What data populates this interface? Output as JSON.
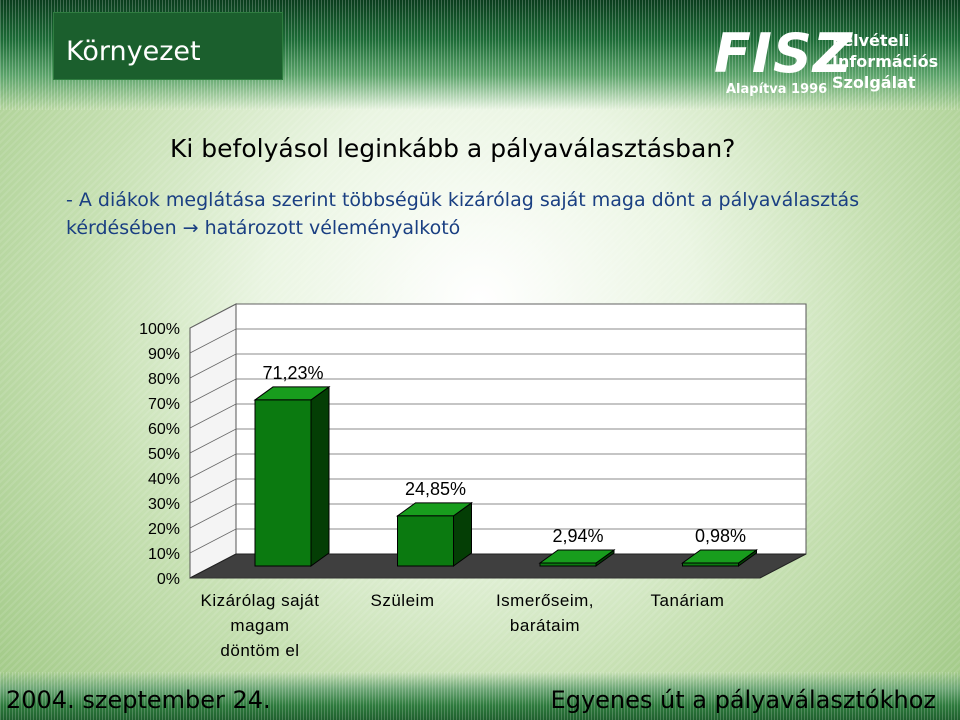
{
  "header": {
    "section_title": "Környezet",
    "logo": {
      "wordmark": "FISZ",
      "founded": "Alapítva 1996",
      "name_lines": [
        "Felvételi",
        "Információs",
        "Szolgálat"
      ]
    }
  },
  "headline": "Ki befolyásol leginkább a pályaválasztásban?",
  "subline": {
    "text": "- A diákok meglátása szerint többségük kizárólag saját maga dönt a pályaválasztás kérdésében",
    "arrow": "→",
    "conclusion": "határozott véleményalkotó"
  },
  "footer": {
    "date": "2004. szeptember 24.",
    "tagline": "Egyenes út a pályaválasztókhoz"
  },
  "colors": {
    "bar_front": "#0b7a10",
    "bar_side": "#043e05",
    "bar_top": "#189d1d",
    "floor": "#3f3f3f",
    "wall": "#ffffff"
  },
  "chart_data": {
    "type": "bar",
    "categories": [
      [
        "Kizárólag saját",
        "magam",
        "döntöm el"
      ],
      [
        "Szüleim"
      ],
      [
        "Ismerőseim,",
        "barátaim"
      ],
      [
        "Tanáriam"
      ]
    ],
    "values": [
      71.23,
      24.85,
      2.94,
      0.98
    ],
    "data_labels": [
      "71,23%",
      "24,85%",
      "2,94%",
      "0,98%"
    ],
    "y_ticks": [
      "0%",
      "10%",
      "20%",
      "30%",
      "40%",
      "50%",
      "60%",
      "70%",
      "80%",
      "90%",
      "100%"
    ],
    "ylim": [
      0,
      100
    ],
    "grid": true,
    "three_d": true
  }
}
